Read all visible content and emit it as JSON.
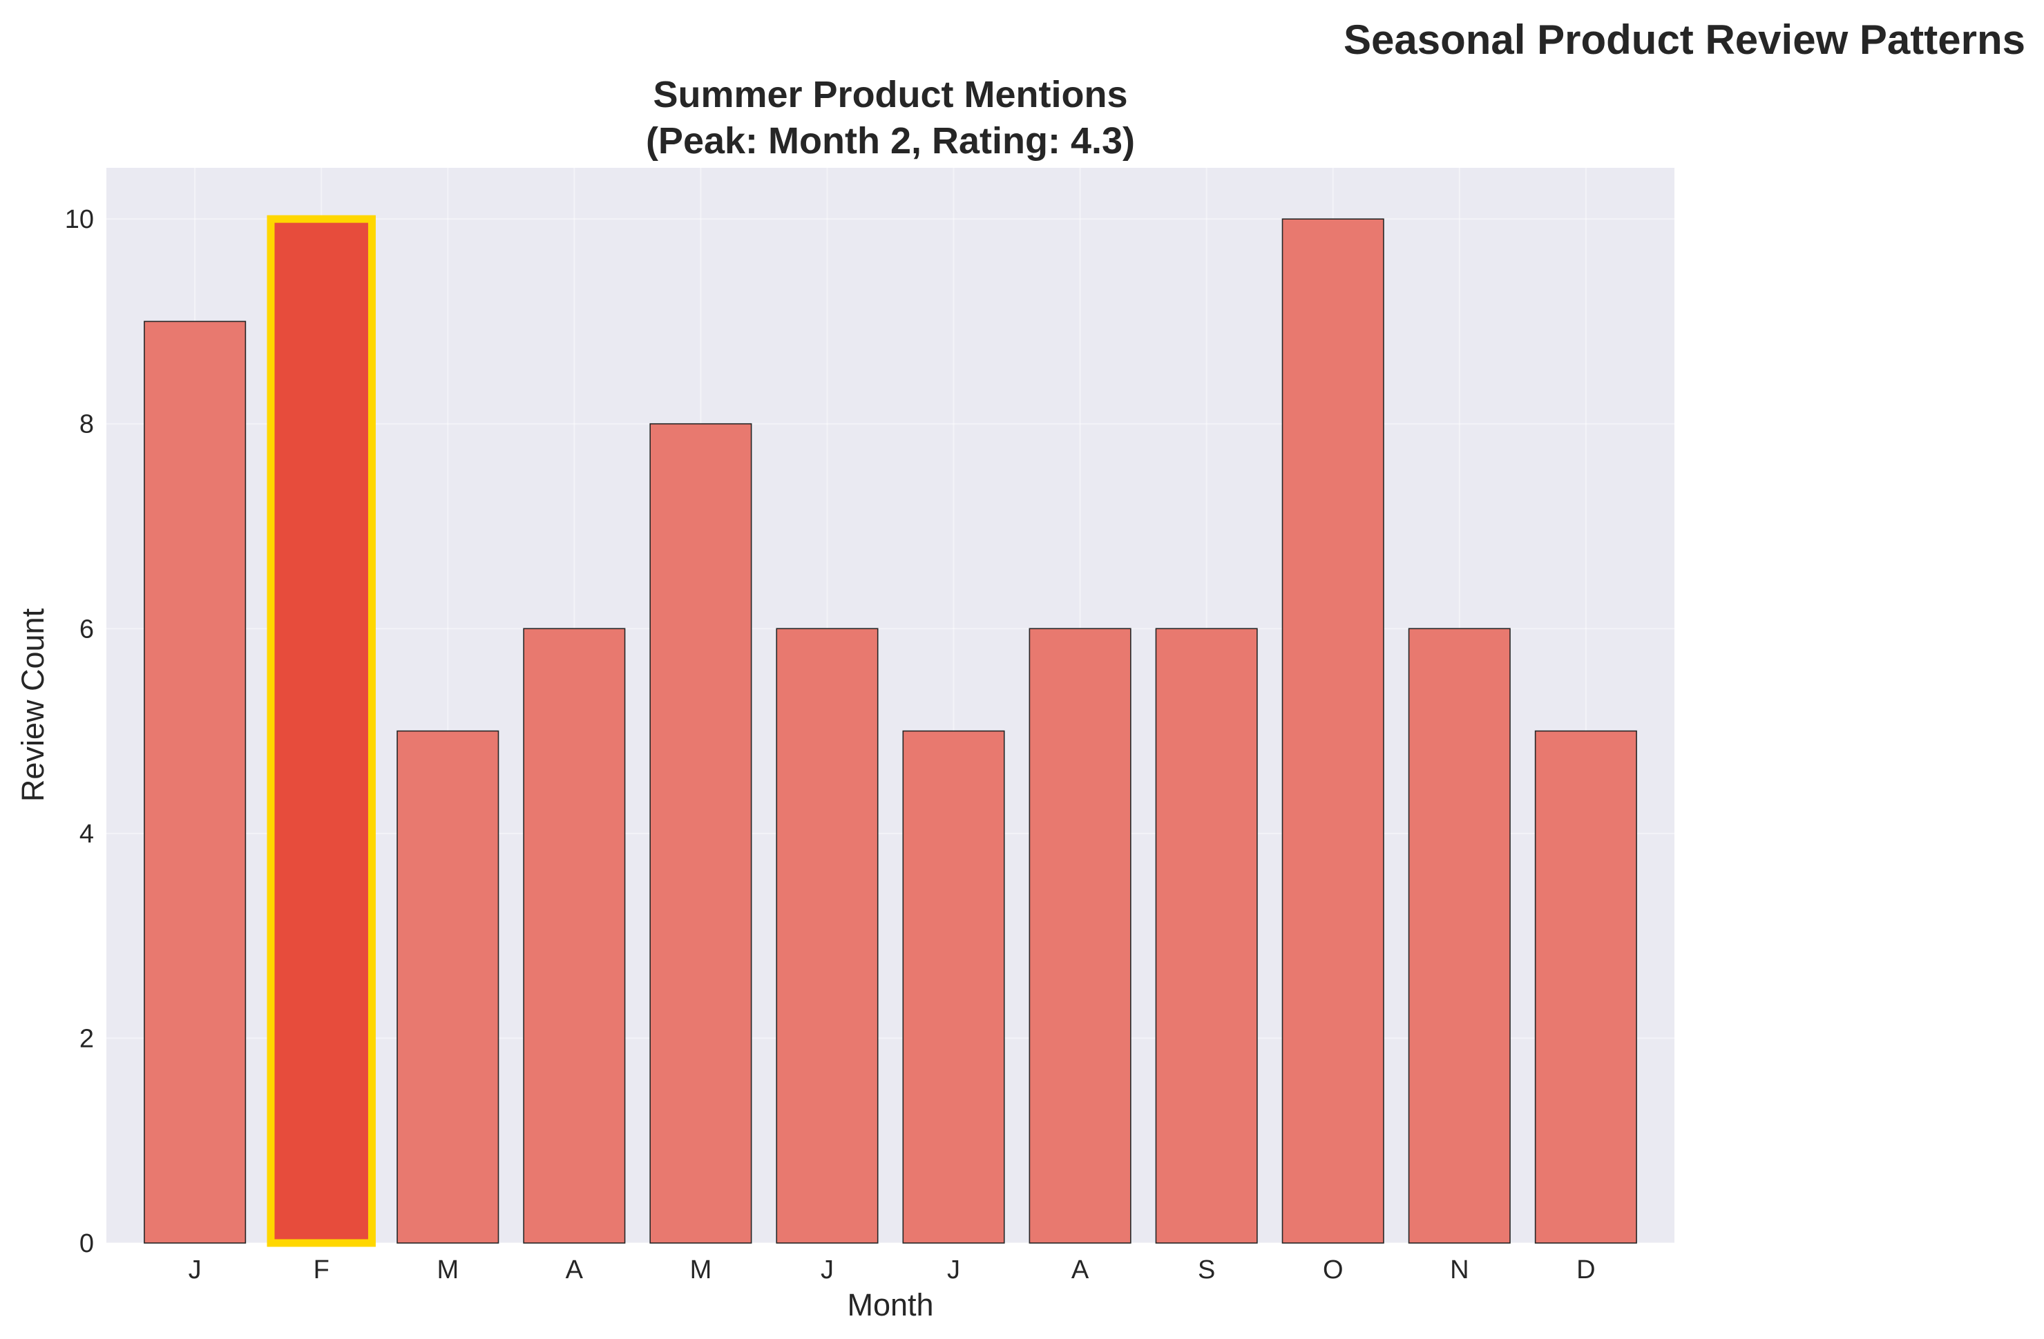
{
  "figure": {
    "suptitle": "Seasonal Product Review Patterns"
  },
  "chart_data": {
    "type": "bar",
    "title_line1": "Summer Product Mentions",
    "title_line2": "(Peak: Month 2, Rating: 4.3)",
    "categories": [
      "J",
      "F",
      "M",
      "A",
      "M",
      "J",
      "J",
      "A",
      "S",
      "O",
      "N",
      "D"
    ],
    "values": [
      9,
      10,
      5,
      6,
      8,
      6,
      5,
      6,
      6,
      10,
      6,
      5
    ],
    "highlight_index": 1,
    "xlabel": "Month",
    "ylabel": "Review Count",
    "ylim": [
      0,
      10.5
    ],
    "yticks": [
      0,
      2,
      4,
      6,
      8,
      10
    ],
    "grid": true,
    "colors": {
      "bar": "#e8796f",
      "highlight_bar": "#e74c3c",
      "highlight_edge": "#ffd700",
      "bar_edge": "#262626",
      "axes_background": "#eaeaf2"
    }
  }
}
